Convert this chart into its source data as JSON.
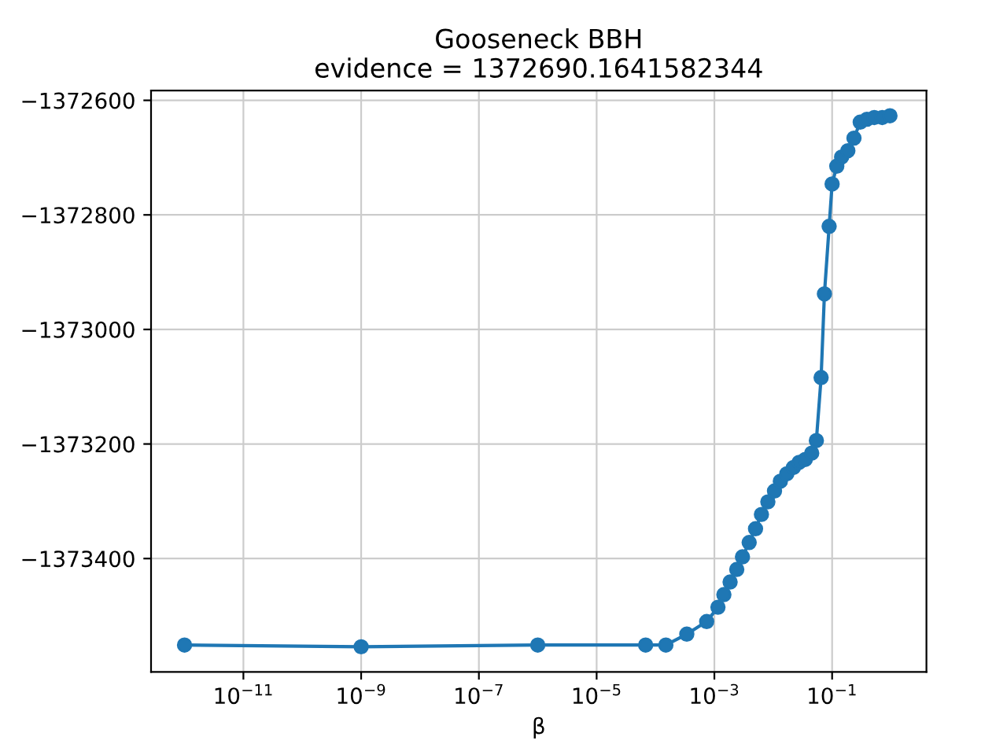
{
  "chart_data": {
    "type": "line",
    "title": "Gooseneck BBH\nevidence = 1372690.1641582344",
    "xlabel": "β",
    "x": [
      1e-12,
      1e-09,
      1e-06,
      6.8e-05,
      0.00015,
      0.00034,
      0.00074,
      0.00115,
      0.00145,
      0.00185,
      0.0024,
      0.003,
      0.0039,
      0.005,
      0.0063,
      0.0081,
      0.0105,
      0.0132,
      0.017,
      0.022,
      0.0275,
      0.035,
      0.045,
      0.054,
      0.065,
      0.074,
      0.089,
      0.1,
      0.12,
      0.145,
      0.185,
      0.235,
      0.3,
      0.39,
      0.52,
      0.71,
      0.96
    ],
    "series": [
      {
        "color": "#1f77b4",
        "values": [
          -1373551,
          -1373554,
          -1373551,
          -1373551,
          -1373551,
          -1373532,
          -1373510,
          -1373485,
          -1373463,
          -1373441,
          -1373419,
          -1373397,
          -1373372,
          -1373348,
          -1373323,
          -1373301,
          -1373282,
          -1373265,
          -1373252,
          -1373241,
          -1373232,
          -1373227,
          -1373216,
          -1373194,
          -1373084,
          -1372938,
          -1372820,
          -1372746,
          -1372715,
          -1372699,
          -1372688,
          -1372666,
          -1372638,
          -1372633,
          -1372630,
          -1372630,
          -1372627
        ]
      }
    ],
    "log": "x",
    "xlim": [
      2.7e-13,
      4.0
    ],
    "xticks": [
      {
        "value": 1e-11,
        "label": "10$^{−11}$"
      },
      {
        "value": 1e-09,
        "label": "10$^{−9}$"
      },
      {
        "value": 1e-07,
        "label": "10$^{−7}$"
      },
      {
        "value": 1e-05,
        "label": "10$^{−5}$"
      },
      {
        "value": 0.001,
        "label": "10$^{−3}$"
      },
      {
        "value": 0.1,
        "label": "10$^{−1}$"
      }
    ],
    "ylim": [
      -1373598,
      -1372583
    ],
    "yticks": [
      {
        "value": -1373400,
        "label": "−1373400"
      },
      {
        "value": -1373200,
        "label": "−1373200"
      },
      {
        "value": -1373000,
        "label": "−1373000"
      },
      {
        "value": -1372800,
        "label": "−1372800"
      },
      {
        "value": -1372600,
        "label": "−1372600"
      }
    ],
    "grid": true,
    "marker": "circle",
    "line_style": "solid"
  }
}
